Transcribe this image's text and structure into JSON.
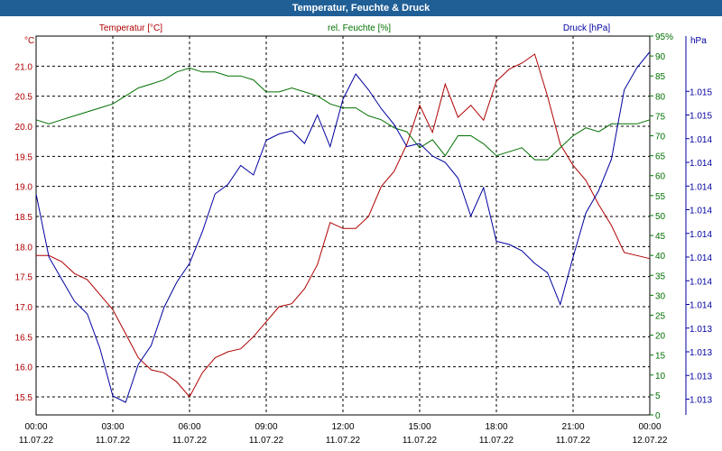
{
  "window": {
    "title": "Temperatur, Feuchte & Druck"
  },
  "colors": {
    "temperature": "#b00000",
    "humidity": "#007000",
    "pressure": "#0000a0",
    "grid": "#000000",
    "title_bg": "#1f5f96"
  },
  "chart_data": {
    "type": "line",
    "title": "Temperatur, Feuchte & Druck",
    "x_ticks": [
      {
        "time": "00:00",
        "date": "11.07.22"
      },
      {
        "time": "03:00",
        "date": "11.07.22"
      },
      {
        "time": "06:00",
        "date": "11.07.22"
      },
      {
        "time": "09:00",
        "date": "11.07.22"
      },
      {
        "time": "12:00",
        "date": "11.07.22"
      },
      {
        "time": "15:00",
        "date": "11.07.22"
      },
      {
        "time": "18:00",
        "date": "11.07.22"
      },
      {
        "time": "21:00",
        "date": "11.07.22"
      },
      {
        "time": "00:00",
        "date": "12.07.22"
      }
    ],
    "x_hours": [
      0,
      0.5,
      1,
      1.5,
      2,
      2.5,
      3,
      3.5,
      4,
      4.5,
      5,
      5.5,
      6,
      6.5,
      7,
      7.5,
      8,
      8.5,
      9,
      9.5,
      10,
      10.5,
      11,
      11.5,
      12,
      12.5,
      13,
      13.5,
      14,
      14.5,
      15,
      15.5,
      16,
      16.5,
      17,
      17.5,
      18,
      18.5,
      19,
      19.5,
      20,
      20.5,
      21,
      21.5,
      22,
      22.5,
      23,
      23.5,
      24
    ],
    "axes": {
      "left": {
        "unit": "°C",
        "min": 15.2,
        "max": 21.5,
        "ticks": [
          "15.5",
          "16.0",
          "16.5",
          "17.0",
          "17.5",
          "18.0",
          "18.5",
          "19.0",
          "19.5",
          "20.0",
          "20.5",
          "21.0"
        ],
        "tick_values": [
          15.5,
          16.0,
          16.5,
          17.0,
          17.5,
          18.0,
          18.5,
          19.0,
          19.5,
          20.0,
          20.5,
          21.0
        ]
      },
      "mid": {
        "unit": "%",
        "min": 0,
        "max": 95,
        "ticks": [
          "0",
          "5",
          "10",
          "15",
          "20",
          "25",
          "30",
          "35",
          "40",
          "45",
          "50",
          "55",
          "60",
          "65",
          "70",
          "75",
          "80",
          "85",
          "90",
          "95"
        ],
        "tick_values": [
          0,
          5,
          10,
          15,
          20,
          25,
          30,
          35,
          40,
          45,
          50,
          55,
          60,
          65,
          70,
          75,
          80,
          85,
          90,
          95
        ],
        "label_suffix_top": "%"
      },
      "right": {
        "unit": "hPa",
        "min": 0,
        "max": 12,
        "ticks": [
          "1.013",
          "1.013",
          "1.013",
          "1.013",
          "1.014",
          "1.014",
          "1.014",
          "1.014",
          "1.014",
          "1.014",
          "1.014",
          "1.014",
          "1.015",
          "1.015"
        ],
        "tick_values": [
          0.5,
          1.25,
          2,
          2.75,
          3.5,
          4.25,
          5,
          5.75,
          6.5,
          7.25,
          8,
          8.75,
          9.5,
          10.25
        ],
        "note": "right axis tick labels printed as shown"
      }
    },
    "series": [
      {
        "name": "Temperatur [°C]",
        "axis": "left",
        "values": [
          17.85,
          17.85,
          17.75,
          17.55,
          17.45,
          17.2,
          16.95,
          16.55,
          16.15,
          15.95,
          15.9,
          15.75,
          15.5,
          15.9,
          16.15,
          16.25,
          16.3,
          16.5,
          16.75,
          17.0,
          17.05,
          17.3,
          17.7,
          18.4,
          18.3,
          18.3,
          18.5,
          19.0,
          19.25,
          19.7,
          20.35,
          19.9,
          20.7,
          20.15,
          20.35,
          20.1,
          20.75,
          20.95,
          21.05,
          21.2,
          20.5,
          19.7,
          19.35,
          19.1,
          18.7,
          18.35,
          17.9,
          17.85,
          17.8
        ]
      },
      {
        "name": "rel. Feuchte [%]",
        "axis": "mid",
        "values": [
          74,
          73,
          74,
          75,
          76,
          77,
          78,
          80,
          82,
          83,
          84,
          86,
          87,
          86,
          86,
          85,
          85,
          84,
          81,
          81,
          82,
          81,
          80,
          78,
          77,
          77,
          75,
          74,
          72,
          71,
          67,
          69,
          65,
          70,
          70,
          68,
          65,
          66,
          67,
          64,
          64,
          67,
          70,
          72,
          71,
          73,
          73,
          73,
          74
        ]
      },
      {
        "name": "Druck [hPa]",
        "axis": "right",
        "values": [
          7.0,
          5.0,
          4.3,
          3.6,
          3.2,
          2.1,
          0.6,
          0.4,
          1.6,
          2.2,
          3.4,
          4.2,
          4.8,
          5.8,
          7.0,
          7.3,
          7.9,
          7.6,
          8.7,
          8.9,
          9.0,
          8.6,
          9.5,
          8.5,
          10.0,
          10.8,
          10.3,
          9.7,
          9.2,
          8.5,
          8.6,
          8.2,
          8.0,
          7.5,
          6.3,
          7.2,
          5.5,
          5.4,
          5.2,
          4.8,
          4.5,
          3.5,
          5.0,
          6.4,
          7.1,
          8.1,
          10.3,
          11.0,
          11.5
        ]
      }
    ]
  }
}
